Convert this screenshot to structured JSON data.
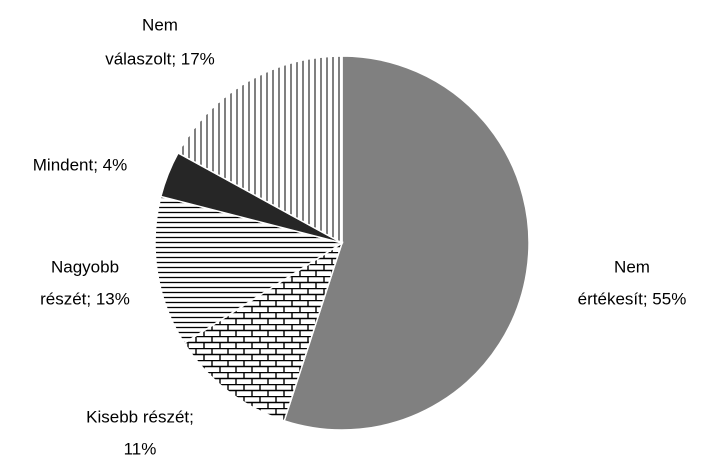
{
  "chart_data": {
    "type": "pie",
    "values": [
      55,
      11,
      13,
      4,
      17
    ],
    "value_labels": [
      [
        "Nem",
        "értékesít; 55%"
      ],
      [
        "Kisebb részét;",
        "11%"
      ],
      [
        "Nagyobb",
        "részét; 13%"
      ],
      [
        "Mindent; 4%"
      ],
      [
        "Nem",
        "válaszolt; 17%"
      ]
    ],
    "colors": [
      "#808080",
      "#ffffff",
      "#ffffff",
      "#262626",
      "#ffffff"
    ],
    "patterns": [
      null,
      "brick",
      "horizontal",
      null,
      "vertical"
    ]
  }
}
